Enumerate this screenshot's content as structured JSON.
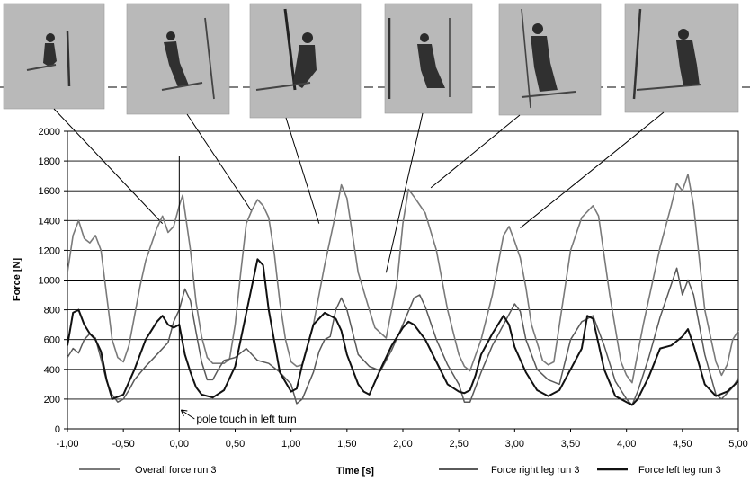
{
  "chart_data": {
    "type": "line",
    "xlabel": "Time [s]",
    "ylabel": "Force [N]",
    "xlim": [
      -1.0,
      5.0
    ],
    "ylim": [
      0,
      2000
    ],
    "x_ticks": [
      "-1,00",
      "-0,50",
      "0,00",
      "0,50",
      "1,00",
      "1,50",
      "2,00",
      "2,50",
      "3,00",
      "3,50",
      "4,00",
      "4,50",
      "5,00"
    ],
    "y_ticks": [
      "0",
      "200",
      "400",
      "600",
      "800",
      "1000",
      "1200",
      "1400",
      "1600",
      "1800",
      "2000"
    ],
    "grid": "horizontal",
    "legend_position": "bottom",
    "annotation": {
      "text": "pole touch in left turn",
      "x": 0.0
    },
    "series": [
      {
        "name": "Overall force run 3",
        "color": "#7a7a7a",
        "points": [
          [
            -1.0,
            1050
          ],
          [
            -0.95,
            1300
          ],
          [
            -0.9,
            1400
          ],
          [
            -0.85,
            1280
          ],
          [
            -0.8,
            1250
          ],
          [
            -0.75,
            1300
          ],
          [
            -0.7,
            1200
          ],
          [
            -0.65,
            900
          ],
          [
            -0.6,
            600
          ],
          [
            -0.55,
            480
          ],
          [
            -0.5,
            450
          ],
          [
            -0.45,
            560
          ],
          [
            -0.4,
            760
          ],
          [
            -0.35,
            960
          ],
          [
            -0.3,
            1130
          ],
          [
            -0.2,
            1350
          ],
          [
            -0.15,
            1430
          ],
          [
            -0.1,
            1320
          ],
          [
            -0.05,
            1360
          ],
          [
            0.0,
            1500
          ],
          [
            0.03,
            1570
          ],
          [
            0.1,
            1200
          ],
          [
            0.15,
            850
          ],
          [
            0.2,
            620
          ],
          [
            0.25,
            480
          ],
          [
            0.3,
            440
          ],
          [
            0.4,
            440
          ],
          [
            0.45,
            470
          ],
          [
            0.5,
            700
          ],
          [
            0.55,
            1050
          ],
          [
            0.6,
            1380
          ],
          [
            0.65,
            1470
          ],
          [
            0.7,
            1540
          ],
          [
            0.75,
            1500
          ],
          [
            0.8,
            1420
          ],
          [
            0.85,
            1180
          ],
          [
            0.9,
            850
          ],
          [
            0.95,
            600
          ],
          [
            1.0,
            450
          ],
          [
            1.05,
            420
          ],
          [
            1.1,
            430
          ],
          [
            1.2,
            700
          ],
          [
            1.3,
            1100
          ],
          [
            1.4,
            1450
          ],
          [
            1.45,
            1640
          ],
          [
            1.5,
            1550
          ],
          [
            1.55,
            1300
          ],
          [
            1.6,
            1050
          ],
          [
            1.7,
            800
          ],
          [
            1.75,
            680
          ],
          [
            1.85,
            610
          ],
          [
            1.95,
            1000
          ],
          [
            2.0,
            1380
          ],
          [
            2.05,
            1610
          ],
          [
            2.1,
            1560
          ],
          [
            2.2,
            1450
          ],
          [
            2.3,
            1200
          ],
          [
            2.4,
            800
          ],
          [
            2.5,
            500
          ],
          [
            2.55,
            420
          ],
          [
            2.6,
            390
          ],
          [
            2.7,
            600
          ],
          [
            2.8,
            900
          ],
          [
            2.85,
            1100
          ],
          [
            2.9,
            1300
          ],
          [
            2.95,
            1360
          ],
          [
            3.0,
            1260
          ],
          [
            3.05,
            1150
          ],
          [
            3.1,
            950
          ],
          [
            3.15,
            700
          ],
          [
            3.25,
            460
          ],
          [
            3.3,
            430
          ],
          [
            3.35,
            450
          ],
          [
            3.5,
            1200
          ],
          [
            3.6,
            1420
          ],
          [
            3.7,
            1500
          ],
          [
            3.75,
            1430
          ],
          [
            3.85,
            900
          ],
          [
            3.95,
            450
          ],
          [
            4.0,
            360
          ],
          [
            4.05,
            310
          ],
          [
            4.15,
            700
          ],
          [
            4.3,
            1220
          ],
          [
            4.4,
            1500
          ],
          [
            4.45,
            1650
          ],
          [
            4.5,
            1600
          ],
          [
            4.55,
            1710
          ],
          [
            4.6,
            1500
          ],
          [
            4.7,
            800
          ],
          [
            4.8,
            450
          ],
          [
            4.85,
            360
          ],
          [
            4.9,
            430
          ],
          [
            4.95,
            600
          ],
          [
            5.0,
            660
          ]
        ]
      },
      {
        "name": "Force right leg run 3",
        "color": "#5a5a5a",
        "points": [
          [
            -1.0,
            480
          ],
          [
            -0.95,
            540
          ],
          [
            -0.9,
            510
          ],
          [
            -0.85,
            600
          ],
          [
            -0.8,
            640
          ],
          [
            -0.75,
            610
          ],
          [
            -0.7,
            470
          ],
          [
            -0.65,
            320
          ],
          [
            -0.6,
            230
          ],
          [
            -0.55,
            180
          ],
          [
            -0.5,
            200
          ],
          [
            -0.45,
            260
          ],
          [
            -0.4,
            330
          ],
          [
            -0.3,
            420
          ],
          [
            -0.2,
            500
          ],
          [
            -0.1,
            580
          ],
          [
            -0.05,
            720
          ],
          [
            0.0,
            800
          ],
          [
            0.05,
            940
          ],
          [
            0.1,
            860
          ],
          [
            0.15,
            650
          ],
          [
            0.2,
            450
          ],
          [
            0.25,
            330
          ],
          [
            0.3,
            330
          ],
          [
            0.35,
            400
          ],
          [
            0.4,
            460
          ],
          [
            0.5,
            480
          ],
          [
            0.6,
            540
          ],
          [
            0.65,
            500
          ],
          [
            0.7,
            460
          ],
          [
            0.8,
            440
          ],
          [
            0.9,
            380
          ],
          [
            1.0,
            300
          ],
          [
            1.05,
            170
          ],
          [
            1.1,
            200
          ],
          [
            1.2,
            380
          ],
          [
            1.25,
            520
          ],
          [
            1.3,
            600
          ],
          [
            1.35,
            620
          ],
          [
            1.4,
            800
          ],
          [
            1.45,
            880
          ],
          [
            1.5,
            800
          ],
          [
            1.55,
            650
          ],
          [
            1.6,
            500
          ],
          [
            1.7,
            420
          ],
          [
            1.8,
            390
          ],
          [
            1.9,
            530
          ],
          [
            2.0,
            700
          ],
          [
            2.1,
            880
          ],
          [
            2.15,
            900
          ],
          [
            2.2,
            820
          ],
          [
            2.3,
            600
          ],
          [
            2.4,
            430
          ],
          [
            2.5,
            300
          ],
          [
            2.55,
            180
          ],
          [
            2.6,
            180
          ],
          [
            2.7,
            380
          ],
          [
            2.8,
            560
          ],
          [
            2.9,
            700
          ],
          [
            3.0,
            840
          ],
          [
            3.05,
            790
          ],
          [
            3.1,
            600
          ],
          [
            3.2,
            400
          ],
          [
            3.3,
            330
          ],
          [
            3.4,
            300
          ],
          [
            3.5,
            600
          ],
          [
            3.6,
            720
          ],
          [
            3.7,
            760
          ],
          [
            3.8,
            560
          ],
          [
            3.9,
            320
          ],
          [
            4.0,
            200
          ],
          [
            4.05,
            160
          ],
          [
            4.1,
            250
          ],
          [
            4.2,
            480
          ],
          [
            4.3,
            750
          ],
          [
            4.35,
            860
          ],
          [
            4.45,
            1080
          ],
          [
            4.5,
            900
          ],
          [
            4.55,
            1000
          ],
          [
            4.6,
            900
          ],
          [
            4.7,
            500
          ],
          [
            4.8,
            230
          ],
          [
            4.85,
            200
          ],
          [
            4.95,
            280
          ],
          [
            5.0,
            340
          ]
        ]
      },
      {
        "name": "Force left leg run 3",
        "color": "#111111",
        "points": [
          [
            -1.0,
            560
          ],
          [
            -0.95,
            780
          ],
          [
            -0.9,
            800
          ],
          [
            -0.85,
            700
          ],
          [
            -0.8,
            640
          ],
          [
            -0.75,
            600
          ],
          [
            -0.7,
            520
          ],
          [
            -0.65,
            330
          ],
          [
            -0.6,
            200
          ],
          [
            -0.5,
            230
          ],
          [
            -0.4,
            400
          ],
          [
            -0.3,
            600
          ],
          [
            -0.2,
            720
          ],
          [
            -0.15,
            760
          ],
          [
            -0.1,
            700
          ],
          [
            -0.05,
            680
          ],
          [
            0.0,
            700
          ],
          [
            0.05,
            500
          ],
          [
            0.1,
            380
          ],
          [
            0.15,
            280
          ],
          [
            0.2,
            230
          ],
          [
            0.3,
            210
          ],
          [
            0.4,
            260
          ],
          [
            0.5,
            420
          ],
          [
            0.6,
            780
          ],
          [
            0.7,
            1140
          ],
          [
            0.75,
            1100
          ],
          [
            0.8,
            800
          ],
          [
            0.9,
            380
          ],
          [
            1.0,
            250
          ],
          [
            1.05,
            270
          ],
          [
            1.1,
            430
          ],
          [
            1.2,
            700
          ],
          [
            1.3,
            780
          ],
          [
            1.4,
            740
          ],
          [
            1.45,
            660
          ],
          [
            1.5,
            500
          ],
          [
            1.6,
            300
          ],
          [
            1.65,
            250
          ],
          [
            1.7,
            230
          ],
          [
            1.8,
            400
          ],
          [
            1.9,
            560
          ],
          [
            2.0,
            680
          ],
          [
            2.05,
            720
          ],
          [
            2.1,
            700
          ],
          [
            2.2,
            600
          ],
          [
            2.3,
            450
          ],
          [
            2.4,
            300
          ],
          [
            2.5,
            250
          ],
          [
            2.55,
            240
          ],
          [
            2.6,
            260
          ],
          [
            2.65,
            360
          ],
          [
            2.7,
            500
          ],
          [
            2.8,
            640
          ],
          [
            2.9,
            760
          ],
          [
            2.95,
            700
          ],
          [
            3.0,
            550
          ],
          [
            3.1,
            380
          ],
          [
            3.2,
            260
          ],
          [
            3.3,
            220
          ],
          [
            3.4,
            260
          ],
          [
            3.5,
            400
          ],
          [
            3.6,
            540
          ],
          [
            3.65,
            760
          ],
          [
            3.7,
            740
          ],
          [
            3.8,
            400
          ],
          [
            3.9,
            220
          ],
          [
            4.0,
            180
          ],
          [
            4.05,
            160
          ],
          [
            4.1,
            200
          ],
          [
            4.2,
            350
          ],
          [
            4.3,
            540
          ],
          [
            4.4,
            560
          ],
          [
            4.5,
            620
          ],
          [
            4.55,
            670
          ],
          [
            4.6,
            560
          ],
          [
            4.7,
            300
          ],
          [
            4.8,
            220
          ],
          [
            4.9,
            250
          ],
          [
            5.0,
            320
          ]
        ]
      }
    ],
    "photo_links": [
      {
        "x": -0.15,
        "y": 1380
      },
      {
        "x": 0.65,
        "y": 1460
      },
      {
        "x": 1.25,
        "y": 1380
      },
      {
        "x": 1.85,
        "y": 1050
      },
      {
        "x": 2.25,
        "y": 1620
      },
      {
        "x": 3.05,
        "y": 1350
      }
    ]
  }
}
